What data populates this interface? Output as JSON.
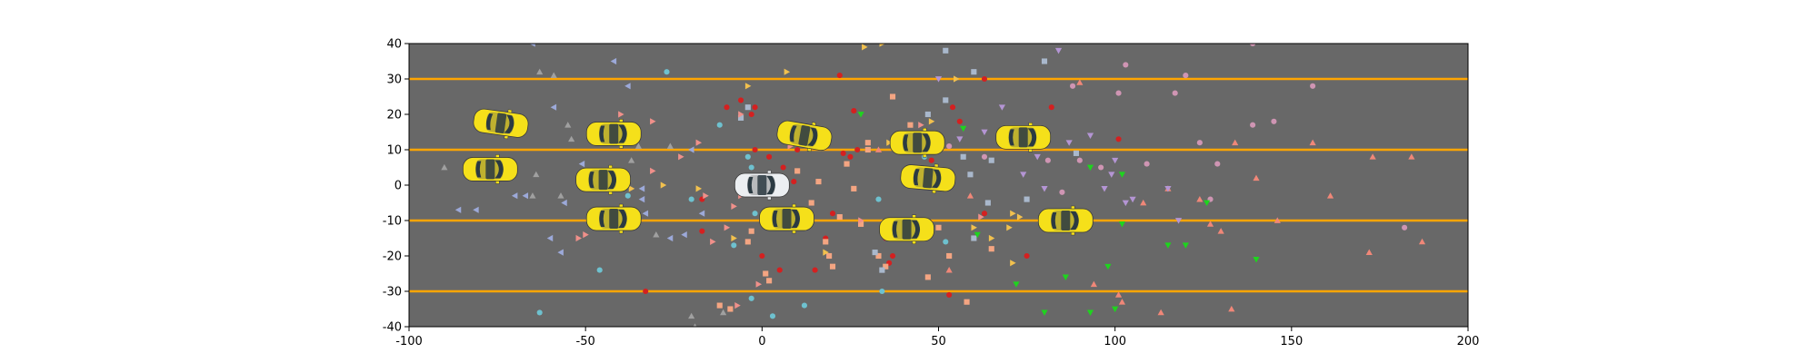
{
  "chart_data": {
    "type": "scatter",
    "title": "",
    "xlabel": "",
    "ylabel": "",
    "xlim": [
      -100,
      200
    ],
    "ylim": [
      -40,
      40
    ],
    "xticks": [
      -100,
      -50,
      0,
      50,
      100,
      150,
      200
    ],
    "yticks": [
      -40,
      -30,
      -20,
      -10,
      0,
      10,
      20,
      30,
      40
    ],
    "background_color": "#686868",
    "lane_line_color": "#FFA500",
    "lane_lines_y": [
      30,
      10,
      -10,
      -30
    ],
    "ego_vehicle": {
      "x": 0,
      "y": 0,
      "color": "#ECEFF2"
    },
    "vehicles": {
      "color": "#F5E01A",
      "points": [
        {
          "x": -74,
          "y": 17.5,
          "heading_deg": -8
        },
        {
          "x": -77,
          "y": 4.5,
          "heading_deg": 0
        },
        {
          "x": -42,
          "y": 14.5,
          "heading_deg": 0
        },
        {
          "x": -45,
          "y": 1.5,
          "heading_deg": 0
        },
        {
          "x": -42,
          "y": -9.5,
          "heading_deg": 0
        },
        {
          "x": 12,
          "y": 14,
          "heading_deg": -10
        },
        {
          "x": 7,
          "y": -9.5,
          "heading_deg": 0
        },
        {
          "x": 44,
          "y": 12,
          "heading_deg": 0
        },
        {
          "x": 47,
          "y": 2,
          "heading_deg": -5
        },
        {
          "x": 41,
          "y": -12.5,
          "heading_deg": 0
        },
        {
          "x": 74,
          "y": 13.5,
          "heading_deg": 0
        },
        {
          "x": 86,
          "y": -10,
          "heading_deg": 0
        }
      ]
    },
    "series": [
      {
        "marker": "circle",
        "color": "#D42020",
        "points": [
          [
            -10,
            22
          ],
          [
            -6,
            24
          ],
          [
            -3,
            20
          ],
          [
            -2,
            22
          ],
          [
            -2,
            10
          ],
          [
            2,
            8
          ],
          [
            6,
            5
          ],
          [
            9,
            1
          ],
          [
            10,
            10
          ],
          [
            20,
            -8
          ],
          [
            22,
            31
          ],
          [
            23,
            9
          ],
          [
            25,
            8
          ],
          [
            26,
            21
          ],
          [
            27,
            10
          ],
          [
            30,
            10
          ],
          [
            35,
            -15
          ],
          [
            36,
            -22
          ],
          [
            37,
            -20
          ],
          [
            48,
            7
          ],
          [
            53,
            -31
          ],
          [
            54,
            22
          ],
          [
            56,
            18
          ],
          [
            63,
            30
          ],
          [
            63,
            -8
          ],
          [
            75,
            -20
          ],
          [
            82,
            22
          ],
          [
            101,
            13
          ],
          [
            -33,
            -30
          ],
          [
            -17,
            -4
          ],
          [
            -17,
            -13
          ],
          [
            0,
            -20
          ],
          [
            5,
            -24
          ],
          [
            15,
            -24
          ],
          [
            18,
            -15
          ]
        ]
      },
      {
        "marker": "circle",
        "color": "#CF95B3",
        "points": [
          [
            53,
            11
          ],
          [
            63,
            8
          ],
          [
            81,
            7
          ],
          [
            85,
            -2
          ],
          [
            88,
            28
          ],
          [
            90,
            7
          ],
          [
            96,
            5
          ],
          [
            101,
            26
          ],
          [
            103,
            34
          ],
          [
            109,
            6
          ],
          [
            117,
            26
          ],
          [
            120,
            31
          ],
          [
            124,
            12
          ],
          [
            127,
            -4
          ],
          [
            129,
            6
          ],
          [
            139,
            17
          ],
          [
            139,
            40
          ],
          [
            145,
            18
          ],
          [
            156,
            28
          ],
          [
            182,
            -12
          ]
        ]
      },
      {
        "marker": "circle",
        "color": "#6EC1CF",
        "points": [
          [
            -63,
            -36
          ],
          [
            -46,
            -24
          ],
          [
            -38,
            -3
          ],
          [
            -27,
            32
          ],
          [
            -20,
            -4
          ],
          [
            -12,
            17
          ],
          [
            -8,
            -17
          ],
          [
            -4,
            8
          ],
          [
            -3,
            -32
          ],
          [
            -3,
            5
          ],
          [
            -2,
            -8
          ],
          [
            3,
            -37
          ],
          [
            12,
            -34
          ],
          [
            16,
            13
          ],
          [
            33,
            -4
          ],
          [
            34,
            -30
          ],
          [
            46,
            8
          ],
          [
            52,
            -16
          ]
        ]
      },
      {
        "marker": "square",
        "color": "#F4A582",
        "points": [
          [
            -12,
            -34
          ],
          [
            -9,
            -35
          ],
          [
            -4,
            -16
          ],
          [
            -3,
            -13
          ],
          [
            1,
            -25
          ],
          [
            2,
            -27
          ],
          [
            10,
            4
          ],
          [
            14,
            -5
          ],
          [
            16,
            1
          ],
          [
            18,
            -16
          ],
          [
            19,
            -20
          ],
          [
            20,
            -23
          ],
          [
            22,
            -9
          ],
          [
            24,
            6
          ],
          [
            26,
            -1
          ],
          [
            28,
            -11
          ],
          [
            30,
            12
          ],
          [
            30,
            10
          ],
          [
            33,
            -20
          ],
          [
            35,
            -23
          ],
          [
            37,
            25
          ],
          [
            42,
            17
          ],
          [
            43,
            -11
          ],
          [
            47,
            -26
          ],
          [
            50,
            -12
          ],
          [
            53,
            -20
          ],
          [
            58,
            -33
          ],
          [
            65,
            -18
          ]
        ]
      },
      {
        "marker": "square",
        "color": "#A9B8CC",
        "points": [
          [
            -4,
            22
          ],
          [
            -6,
            19
          ],
          [
            32,
            -19
          ],
          [
            34,
            -24
          ],
          [
            47,
            20
          ],
          [
            52,
            38
          ],
          [
            52,
            24
          ],
          [
            57,
            8
          ],
          [
            59,
            3
          ],
          [
            60,
            32
          ],
          [
            60,
            -15
          ],
          [
            64,
            -5
          ],
          [
            65,
            7
          ],
          [
            75,
            -4
          ],
          [
            80,
            35
          ],
          [
            89,
            9
          ]
        ]
      },
      {
        "marker": "triangle-up",
        "color": "#F08778",
        "points": [
          [
            33,
            10
          ],
          [
            53,
            -24
          ],
          [
            59,
            -3
          ],
          [
            90,
            29
          ],
          [
            94,
            -28
          ],
          [
            101,
            -31
          ],
          [
            102,
            -33
          ],
          [
            108,
            -5
          ],
          [
            113,
            -36
          ],
          [
            115,
            -1
          ],
          [
            124,
            -4
          ],
          [
            127,
            -11
          ],
          [
            130,
            -13
          ],
          [
            133,
            -35
          ],
          [
            134,
            12
          ],
          [
            140,
            2
          ],
          [
            146,
            -10
          ],
          [
            156,
            12
          ],
          [
            161,
            -3
          ],
          [
            172,
            -19
          ],
          [
            173,
            8
          ],
          [
            184,
            8
          ],
          [
            187,
            -16
          ]
        ]
      },
      {
        "marker": "triangle-up",
        "color": "#A0A0A0",
        "points": [
          [
            -90,
            5
          ],
          [
            -65,
            -3
          ],
          [
            -64,
            3
          ],
          [
            -63,
            32
          ],
          [
            -59,
            31
          ],
          [
            -57,
            -3
          ],
          [
            -54,
            13
          ],
          [
            -55,
            17
          ],
          [
            -43,
            -8
          ],
          [
            -37,
            7
          ],
          [
            -35,
            11
          ],
          [
            -30,
            -14
          ],
          [
            -26,
            11
          ],
          [
            -20,
            -37
          ],
          [
            -19,
            -40
          ],
          [
            -11,
            -36
          ]
        ]
      },
      {
        "marker": "triangle-down",
        "color": "#1ED41E",
        "points": [
          [
            28,
            20
          ],
          [
            57,
            16
          ],
          [
            61,
            -14
          ],
          [
            72,
            -28
          ],
          [
            80,
            -36
          ],
          [
            86,
            -26
          ],
          [
            93,
            -36
          ],
          [
            93,
            5
          ],
          [
            98,
            -23
          ],
          [
            100,
            -35
          ],
          [
            102,
            -11
          ],
          [
            102,
            3
          ],
          [
            115,
            -17
          ],
          [
            120,
            -17
          ],
          [
            126,
            -5
          ],
          [
            140,
            -21
          ]
        ]
      },
      {
        "marker": "triangle-down",
        "color": "#B495D4",
        "points": [
          [
            50,
            30
          ],
          [
            56,
            13
          ],
          [
            63,
            15
          ],
          [
            68,
            22
          ],
          [
            74,
            3
          ],
          [
            78,
            8
          ],
          [
            80,
            -1
          ],
          [
            83,
            -10
          ],
          [
            87,
            12
          ],
          [
            93,
            14
          ],
          [
            97,
            -1
          ],
          [
            99,
            3
          ],
          [
            100,
            7
          ],
          [
            103,
            -5
          ],
          [
            105,
            -4
          ],
          [
            115,
            -1
          ],
          [
            118,
            -10
          ],
          [
            84,
            38
          ]
        ]
      },
      {
        "marker": "triangle-left",
        "color": "#9CA9D9",
        "points": [
          [
            -86,
            -7
          ],
          [
            -81,
            -7
          ],
          [
            -70,
            -3
          ],
          [
            -67,
            -3
          ],
          [
            -65,
            40
          ],
          [
            -59,
            22
          ],
          [
            -57,
            -19
          ],
          [
            -56,
            -5
          ],
          [
            -51,
            6
          ],
          [
            -47,
            0
          ],
          [
            -42,
            35
          ],
          [
            -38,
            28
          ],
          [
            -34,
            -4
          ],
          [
            -34,
            -1
          ],
          [
            -33,
            -8
          ],
          [
            -26,
            -15
          ],
          [
            -22,
            -14
          ],
          [
            -20,
            10
          ],
          [
            -17,
            -8
          ],
          [
            -60,
            -15
          ]
        ]
      },
      {
        "marker": "triangle-right",
        "color": "#F0908A",
        "points": [
          [
            -50,
            -14
          ],
          [
            -47,
            3
          ],
          [
            -40,
            20
          ],
          [
            -31,
            18
          ],
          [
            -31,
            4
          ],
          [
            -23,
            8
          ],
          [
            -18,
            12
          ],
          [
            -16,
            -3
          ],
          [
            -14,
            -16
          ],
          [
            -10,
            -12
          ],
          [
            -8,
            -6
          ],
          [
            -7,
            -34
          ],
          [
            -6,
            -3
          ],
          [
            -6,
            20
          ],
          [
            -3,
            -2
          ],
          [
            -1,
            -28
          ],
          [
            2,
            -8
          ],
          [
            8,
            11
          ],
          [
            11,
            16
          ],
          [
            40,
            13
          ],
          [
            45,
            17
          ],
          [
            62,
            -9
          ],
          [
            28,
            -10
          ],
          [
            -52,
            -15
          ]
        ]
      },
      {
        "marker": "triangle-right",
        "color": "#F2C14E",
        "points": [
          [
            -37,
            -1
          ],
          [
            -28,
            0
          ],
          [
            -18,
            -1
          ],
          [
            -8,
            -15
          ],
          [
            -4,
            28
          ],
          [
            7,
            32
          ],
          [
            17,
            14
          ],
          [
            18,
            -19
          ],
          [
            29,
            39
          ],
          [
            34,
            40
          ],
          [
            36,
            12
          ],
          [
            48,
            18
          ],
          [
            55,
            30
          ],
          [
            65,
            -15
          ],
          [
            60,
            -12
          ],
          [
            70,
            -12
          ],
          [
            71,
            -22
          ],
          [
            73,
            -9
          ],
          [
            76,
            15
          ],
          [
            71,
            -8
          ]
        ]
      }
    ]
  }
}
